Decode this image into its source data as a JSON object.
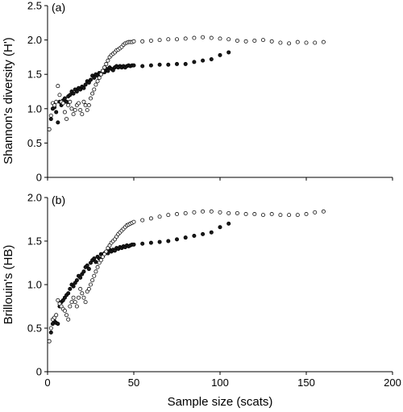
{
  "chart_data": [
    {
      "type": "scatter",
      "panel_label": "(a)",
      "ylabel": "Shannon's diversity (H')",
      "xlabel": "",
      "xlim": [
        0,
        200
      ],
      "ylim": [
        0,
        2.5
      ],
      "xticks": [
        0,
        50,
        100,
        150,
        200
      ],
      "yticks": [
        "0",
        "0.5",
        "1.0",
        "1.5",
        "2.0",
        "2.5"
      ],
      "grid": false,
      "series": [
        {
          "marker": "open-circle",
          "x": [
            1,
            2,
            3,
            4,
            5,
            6,
            7,
            8,
            9,
            10,
            11,
            12,
            13,
            14,
            15,
            16,
            17,
            18,
            19,
            20,
            21,
            22,
            23,
            24,
            25,
            26,
            27,
            28,
            29,
            30,
            31,
            32,
            33,
            34,
            35,
            36,
            37,
            38,
            39,
            40,
            41,
            42,
            43,
            44,
            45,
            46,
            47,
            48,
            49,
            50,
            55,
            60,
            65,
            70,
            75,
            80,
            85,
            90,
            95,
            100,
            105,
            110,
            115,
            120,
            125,
            130,
            135,
            140,
            145,
            150,
            155,
            160
          ],
          "y": [
            0.7,
            0.9,
            1.08,
            1.05,
            1.1,
            1.33,
            1.2,
            1.1,
            1.08,
            0.95,
            0.85,
            1.05,
            1.1,
            1.0,
            0.92,
            0.98,
            1.05,
            1.08,
            0.98,
            0.92,
            1.1,
            1.05,
            0.98,
            1.05,
            1.15,
            1.22,
            1.28,
            1.35,
            1.4,
            1.45,
            1.5,
            1.55,
            1.6,
            1.65,
            1.7,
            1.75,
            1.78,
            1.8,
            1.82,
            1.85,
            1.86,
            1.88,
            1.9,
            1.93,
            1.95,
            1.96,
            1.97,
            1.97,
            1.97,
            1.98,
            1.98,
            1.99,
            2.0,
            2.01,
            2.01,
            2.02,
            2.03,
            2.04,
            2.03,
            2.02,
            2.01,
            1.99,
            1.98,
            1.99,
            2.0,
            1.98,
            1.96,
            1.95,
            1.97,
            1.96,
            1.96,
            1.97
          ]
        },
        {
          "marker": "filled-circle",
          "x": [
            1,
            2,
            3,
            4,
            5,
            6,
            7,
            8,
            9,
            10,
            11,
            12,
            13,
            14,
            15,
            16,
            17,
            18,
            19,
            20,
            21,
            22,
            23,
            24,
            25,
            26,
            27,
            28,
            29,
            30,
            31,
            32,
            33,
            34,
            35,
            36,
            37,
            38,
            39,
            40,
            41,
            42,
            43,
            44,
            45,
            46,
            47,
            48,
            49,
            50,
            55,
            60,
            65,
            70,
            75,
            80,
            85,
            90,
            95,
            100,
            105
          ],
          "y": [
            0.7,
            0.85,
            1.0,
            1.02,
            0.95,
            0.8,
            1.1,
            1.05,
            1.12,
            1.15,
            1.1,
            1.18,
            1.2,
            1.25,
            1.22,
            1.28,
            1.25,
            1.3,
            1.28,
            1.32,
            1.3,
            1.35,
            1.4,
            1.38,
            1.42,
            1.48,
            1.45,
            1.5,
            1.48,
            1.52,
            1.5,
            1.55,
            1.53,
            1.58,
            1.55,
            1.6,
            1.58,
            1.56,
            1.6,
            1.62,
            1.6,
            1.62,
            1.6,
            1.62,
            1.6,
            1.62,
            1.63,
            1.62,
            1.63,
            1.63,
            1.62,
            1.63,
            1.64,
            1.64,
            1.65,
            1.65,
            1.68,
            1.7,
            1.72,
            1.78,
            1.82
          ]
        }
      ]
    },
    {
      "type": "scatter",
      "panel_label": "(b)",
      "ylabel": "Brillouin's (HB)",
      "xlabel": "Sample size (scats)",
      "xlim": [
        0,
        200
      ],
      "ylim": [
        0,
        2.0
      ],
      "xticks": [
        0,
        50,
        100,
        150,
        200
      ],
      "yticks": [
        "0",
        "0.5",
        "1.0",
        "1.5",
        "2.0"
      ],
      "grid": false,
      "series": [
        {
          "marker": "open-circle",
          "x": [
            1,
            2,
            3,
            4,
            5,
            6,
            7,
            8,
            9,
            10,
            11,
            12,
            13,
            14,
            15,
            16,
            17,
            18,
            19,
            20,
            21,
            22,
            23,
            24,
            25,
            26,
            27,
            28,
            29,
            30,
            31,
            32,
            33,
            34,
            35,
            36,
            37,
            38,
            39,
            40,
            41,
            42,
            43,
            44,
            45,
            46,
            47,
            48,
            49,
            50,
            55,
            60,
            65,
            70,
            75,
            80,
            85,
            90,
            95,
            100,
            105,
            110,
            115,
            120,
            125,
            130,
            135,
            140,
            145,
            150,
            155,
            160
          ],
          "y": [
            0.35,
            0.5,
            0.6,
            0.62,
            0.65,
            0.82,
            0.78,
            0.75,
            0.72,
            0.7,
            0.65,
            0.6,
            0.75,
            0.8,
            0.85,
            0.8,
            0.75,
            0.85,
            0.95,
            0.9,
            0.85,
            0.8,
            0.92,
            0.95,
            1.0,
            1.05,
            1.1,
            1.15,
            1.2,
            1.25,
            1.28,
            1.32,
            1.35,
            1.38,
            1.42,
            1.45,
            1.48,
            1.5,
            1.52,
            1.55,
            1.58,
            1.6,
            1.62,
            1.64,
            1.66,
            1.68,
            1.69,
            1.7,
            1.71,
            1.72,
            1.74,
            1.76,
            1.78,
            1.8,
            1.81,
            1.82,
            1.83,
            1.84,
            1.84,
            1.83,
            1.82,
            1.82,
            1.81,
            1.81,
            1.8,
            1.81,
            1.8,
            1.8,
            1.8,
            1.81,
            1.83,
            1.84
          ]
        },
        {
          "marker": "filled-circle",
          "x": [
            1,
            2,
            3,
            4,
            5,
            6,
            7,
            8,
            9,
            10,
            11,
            12,
            13,
            14,
            15,
            16,
            17,
            18,
            19,
            20,
            21,
            22,
            23,
            24,
            25,
            26,
            27,
            28,
            29,
            30,
            31,
            32,
            33,
            34,
            35,
            36,
            37,
            38,
            39,
            40,
            41,
            42,
            43,
            44,
            45,
            46,
            47,
            48,
            49,
            50,
            55,
            60,
            65,
            70,
            75,
            80,
            85,
            90,
            95,
            100,
            105
          ],
          "y": [
            0.35,
            0.45,
            0.55,
            0.58,
            0.56,
            0.55,
            0.75,
            0.8,
            0.82,
            0.85,
            0.88,
            0.9,
            0.95,
            1.0,
            0.98,
            1.02,
            1.05,
            1.1,
            1.08,
            1.12,
            1.15,
            1.2,
            1.22,
            1.18,
            1.25,
            1.28,
            1.3,
            1.26,
            1.32,
            1.3,
            1.35,
            1.33,
            1.36,
            1.38,
            1.36,
            1.4,
            1.38,
            1.4,
            1.39,
            1.42,
            1.41,
            1.43,
            1.42,
            1.44,
            1.43,
            1.45,
            1.44,
            1.45,
            1.46,
            1.46,
            1.47,
            1.48,
            1.49,
            1.5,
            1.52,
            1.54,
            1.56,
            1.58,
            1.6,
            1.66,
            1.7
          ]
        }
      ]
    }
  ]
}
